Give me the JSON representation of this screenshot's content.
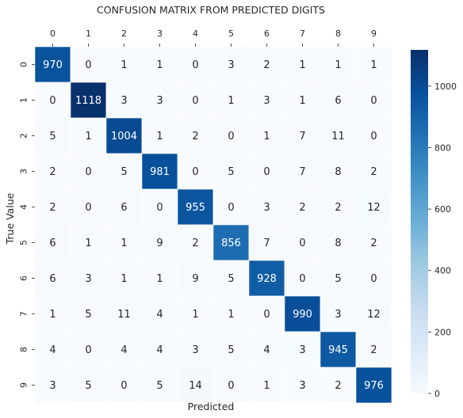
{
  "chart_data": {
    "type": "heatmap",
    "title": "CONFUSION MATRIX FROM PREDICTED DIGITS",
    "xlabel": "Predicted",
    "ylabel": "True Value",
    "x_tick_labels": [
      "0",
      "1",
      "2",
      "3",
      "4",
      "5",
      "6",
      "7",
      "8",
      "9"
    ],
    "y_tick_labels": [
      "0",
      "1",
      "2",
      "3",
      "4",
      "5",
      "6",
      "7",
      "8",
      "9"
    ],
    "x_ticks_position": "top",
    "values": [
      [
        970,
        0,
        1,
        1,
        0,
        3,
        2,
        1,
        1,
        1
      ],
      [
        0,
        1118,
        3,
        3,
        0,
        1,
        3,
        1,
        6,
        0
      ],
      [
        5,
        1,
        1004,
        1,
        2,
        0,
        1,
        7,
        11,
        0
      ],
      [
        2,
        0,
        5,
        981,
        0,
        5,
        0,
        7,
        8,
        2
      ],
      [
        2,
        0,
        6,
        0,
        955,
        0,
        3,
        2,
        2,
        12
      ],
      [
        6,
        1,
        1,
        9,
        2,
        856,
        7,
        0,
        8,
        2
      ],
      [
        6,
        3,
        1,
        1,
        9,
        5,
        928,
        0,
        5,
        0
      ],
      [
        1,
        5,
        11,
        4,
        1,
        1,
        0,
        990,
        3,
        12
      ],
      [
        4,
        0,
        4,
        4,
        3,
        5,
        4,
        3,
        945,
        2
      ],
      [
        3,
        5,
        0,
        5,
        14,
        0,
        1,
        3,
        2,
        976
      ]
    ],
    "colormap": "Blues",
    "color_range": [
      0,
      1118
    ],
    "colorbar": {
      "position": "right",
      "ticks": [
        0,
        200,
        400,
        600,
        800,
        1000
      ],
      "tick_labels": [
        "0",
        "200",
        "400",
        "600",
        "800",
        "1000"
      ]
    },
    "colors": {
      "low": "#f7fbff",
      "high": "#08306b",
      "text_dark": "#262626",
      "text_light": "#ffffff",
      "cell_border": "#ffffff"
    },
    "grid": false
  }
}
